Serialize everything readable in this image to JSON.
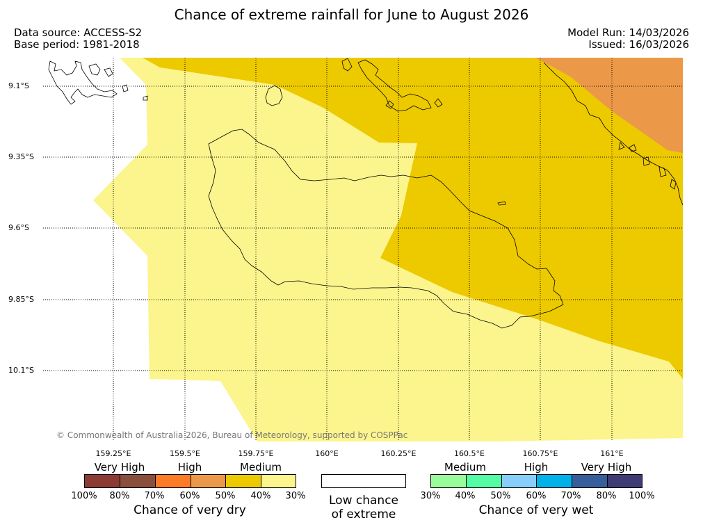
{
  "title": "Chance of extreme rainfall for June to August 2026",
  "meta": {
    "data_source": "Data source: ACCESS-S2",
    "base_period": "Base period: 1981-2018",
    "model_run": "Model Run: 14/03/2026",
    "issued": "Issued: 16/03/2026"
  },
  "copyright": "© Commonwealth of Australia 2026, Bureau of Meteorology, supported by COSPPac",
  "map": {
    "x_ticks": [
      "159.25°E",
      "159.5°E",
      "159.75°E",
      "160°E",
      "160.25°E",
      "160.5°E",
      "160.75°E",
      "161°E"
    ],
    "y_ticks": [
      "9.1°S",
      "9.35°S",
      "9.6°S",
      "9.85°S",
      "10.1°S"
    ],
    "regions": [
      {
        "category": "Medium chance of very dry (30-40%)",
        "color": "#fcf48c"
      },
      {
        "category": "Medium chance of very dry (40-50%)",
        "color": "#edc900"
      },
      {
        "category": "High chance of very dry (50-60%)",
        "color": "#eb9948"
      }
    ]
  },
  "legend": {
    "dry": {
      "title": "Chance of very dry",
      "categories": [
        "Very High",
        "High",
        "Medium"
      ],
      "colors": [
        "#8b3a34",
        "#8a4e3c",
        "#fc7b26",
        "#eb9948",
        "#edc900",
        "#fcf48c"
      ],
      "labels": [
        "100%",
        "80%",
        "70%",
        "60%",
        "50%",
        "40%",
        "30%"
      ]
    },
    "low": {
      "line1": "Low chance",
      "line2": "of extreme"
    },
    "wet": {
      "title": "Chance of very wet",
      "categories": [
        "Medium",
        "High",
        "Very High"
      ],
      "colors": [
        "#9afb9a",
        "#55fca5",
        "#87cefa",
        "#00b1ea",
        "#365e9a",
        "#3f3b75"
      ],
      "labels": [
        "30%",
        "40%",
        "50%",
        "60%",
        "70%",
        "80%",
        "100%"
      ]
    }
  }
}
